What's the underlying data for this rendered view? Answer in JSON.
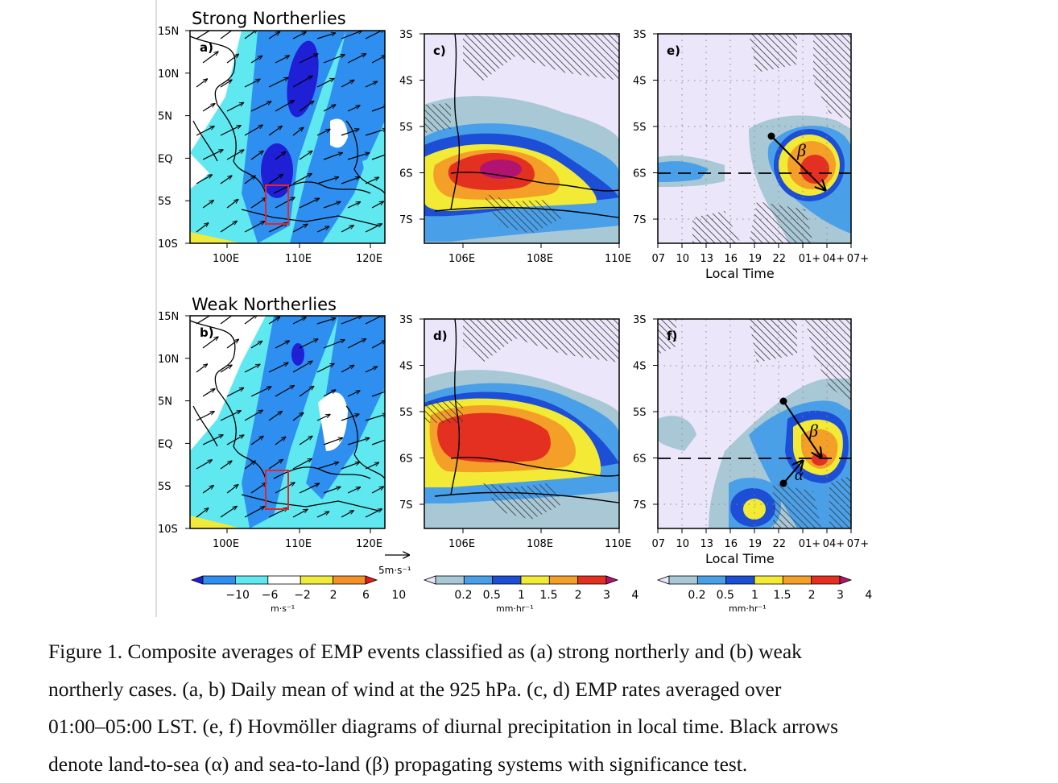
{
  "panels": {
    "row1_title": "Strong Northerlies",
    "row2_title": "Weak Northerlies",
    "a": "a)",
    "b": "b)",
    "c": "c)",
    "d": "d)",
    "e": "e)",
    "f": "f)"
  },
  "wind_axes": {
    "y_ticks": [
      "15N",
      "10N",
      "5N",
      "EQ",
      "5S",
      "10S"
    ],
    "x_ticks": [
      "100E",
      "110E",
      "120E"
    ]
  },
  "precip_axes": {
    "y_ticks": [
      "3S",
      "4S",
      "5S",
      "6S",
      "7S"
    ],
    "x_ticks": [
      "106E",
      "108E",
      "110E"
    ]
  },
  "hov_axes": {
    "x_ticks": [
      "07",
      "10",
      "13",
      "16",
      "19",
      "22",
      "01+",
      "04+",
      "07+"
    ],
    "xlabel": "Local Time"
  },
  "annotations": {
    "beta": "β",
    "alpha": "α",
    "vector_ref": "5m·s⁻¹"
  },
  "colorbars": {
    "wind": {
      "ticks": [
        "−10",
        "−6",
        "−2",
        "2",
        "6",
        "10"
      ],
      "unit": "m·s⁻¹",
      "colors": [
        "#1f1fd6",
        "#2f8ff0",
        "#5fe8f0",
        "#ffffff",
        "#f0ea3c",
        "#f49028",
        "#e61a1a"
      ]
    },
    "precip": {
      "ticks": [
        "0.2",
        "0.5",
        "1",
        "1.5",
        "2",
        "3",
        "4"
      ],
      "unit": "mm·hr⁻¹",
      "colors": [
        "#ece6fa",
        "#a8c8d6",
        "#4aa0e8",
        "#1c4ed6",
        "#f2ea34",
        "#f4a028",
        "#e43020",
        "#b01470"
      ]
    }
  },
  "caption": {
    "line1": "Figure 1. Composite averages of EMP events classified as (a) strong northerly and (b) weak",
    "line2": "northerly cases. (a, b) Daily mean of wind at the 925 hPa. (c, d) EMP rates averaged over",
    "line3": "01:00–05:00 LST. (e, f) Hovmöller diagrams of diurnal precipitation in local time. Black arrows",
    "line4": "denote land-to-sea (α) and sea-to-land (β) propagating systems with significance test."
  }
}
